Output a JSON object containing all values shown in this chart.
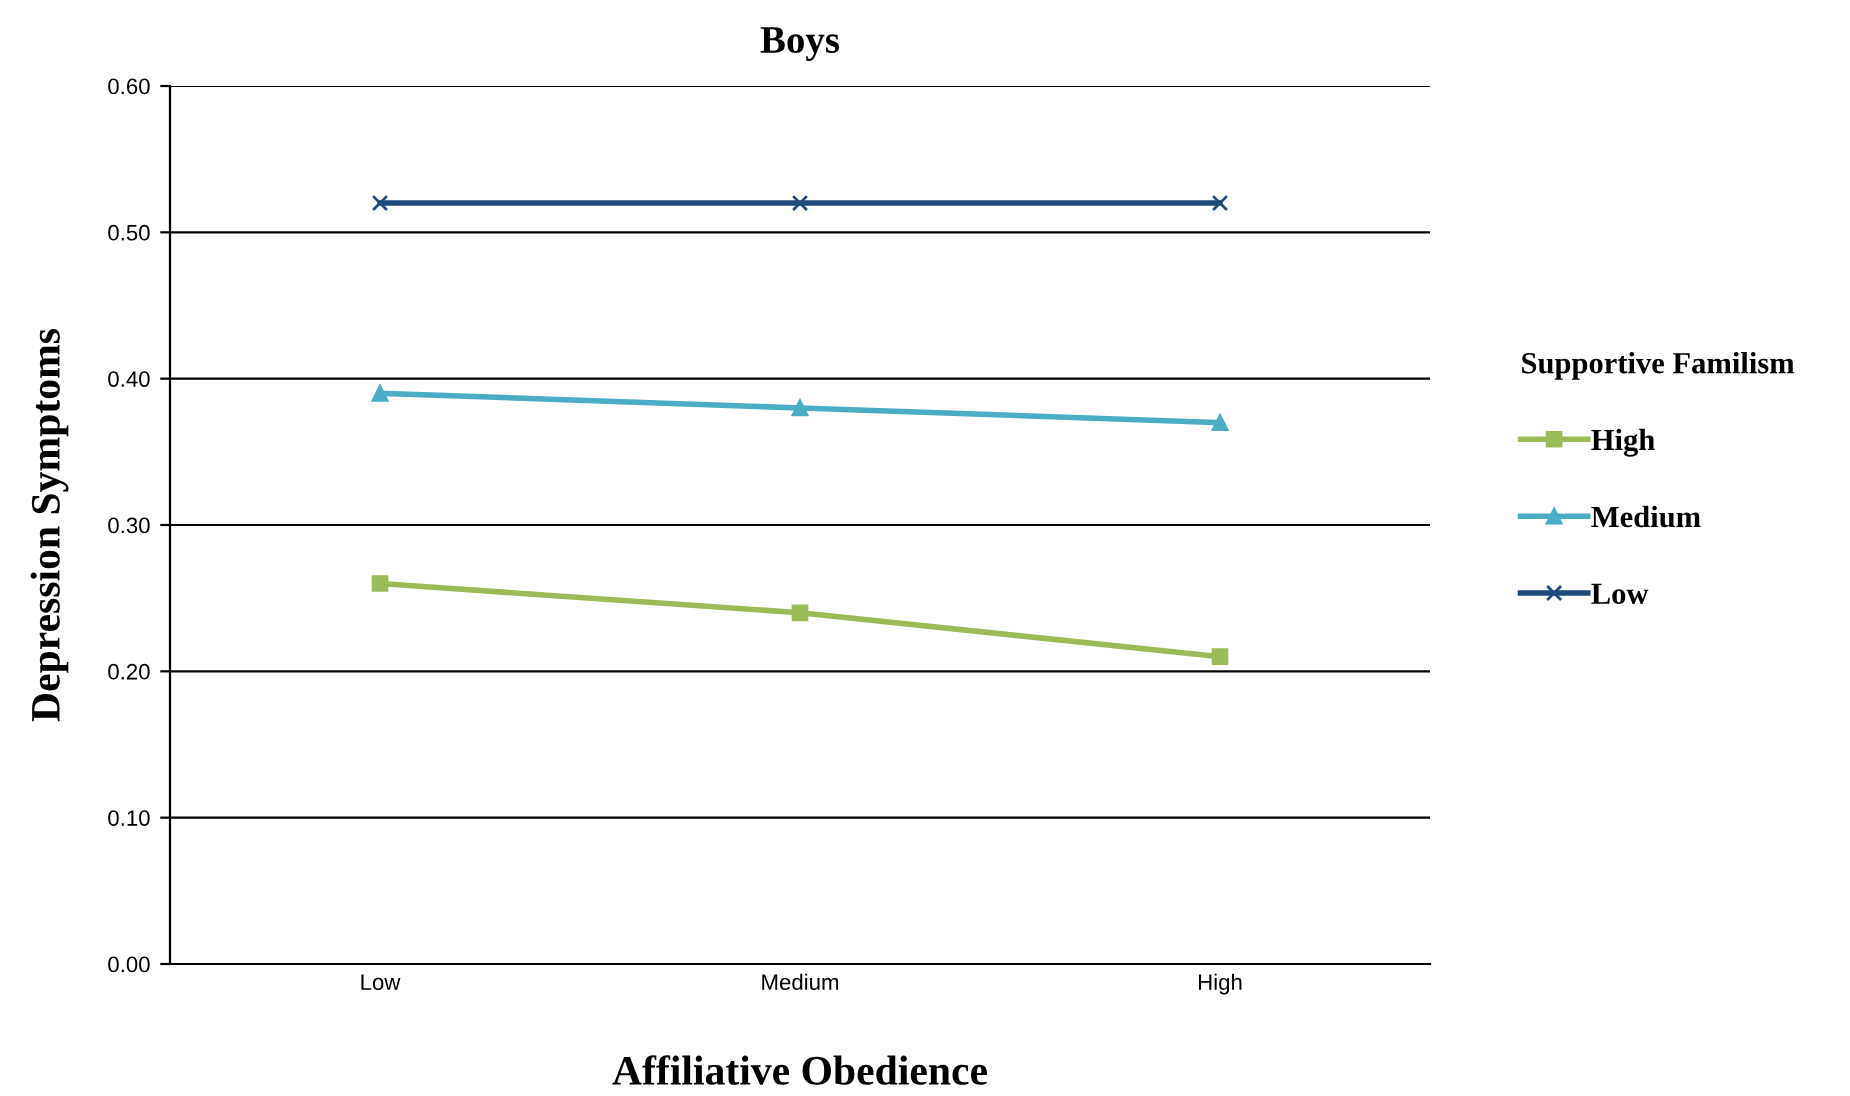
{
  "chart_data": {
    "type": "line",
    "title": "Boys",
    "xlabel": "Affiliative Obedience",
    "ylabel": "Depression Symptoms",
    "legend_title": "Supportive Familism",
    "categories": [
      "Low",
      "Medium",
      "High"
    ],
    "series": [
      {
        "name": "High",
        "color": "#9bbb59",
        "marker": "square",
        "values": [
          0.26,
          0.24,
          0.21
        ]
      },
      {
        "name": "Medium",
        "color": "#4bacc6",
        "marker": "triangle",
        "values": [
          0.39,
          0.38,
          0.37
        ]
      },
      {
        "name": "Low",
        "color": "#1f497d",
        "marker": "cross",
        "values": [
          0.52,
          0.52,
          0.52
        ]
      }
    ],
    "ylim": [
      0,
      0.6
    ],
    "yticks": [
      {
        "value": 0,
        "label": "0.00"
      },
      {
        "value": 0.1,
        "label": "0.10"
      },
      {
        "value": 0.2,
        "label": "0.20"
      },
      {
        "value": 0.3,
        "label": "0.30"
      },
      {
        "value": 0.4,
        "label": "0.40"
      },
      {
        "value": 0.5,
        "label": "0.50"
      },
      {
        "value": 0.6,
        "label": "0.60"
      }
    ],
    "grid": "y",
    "legend": "right",
    "line_style": "solid"
  }
}
